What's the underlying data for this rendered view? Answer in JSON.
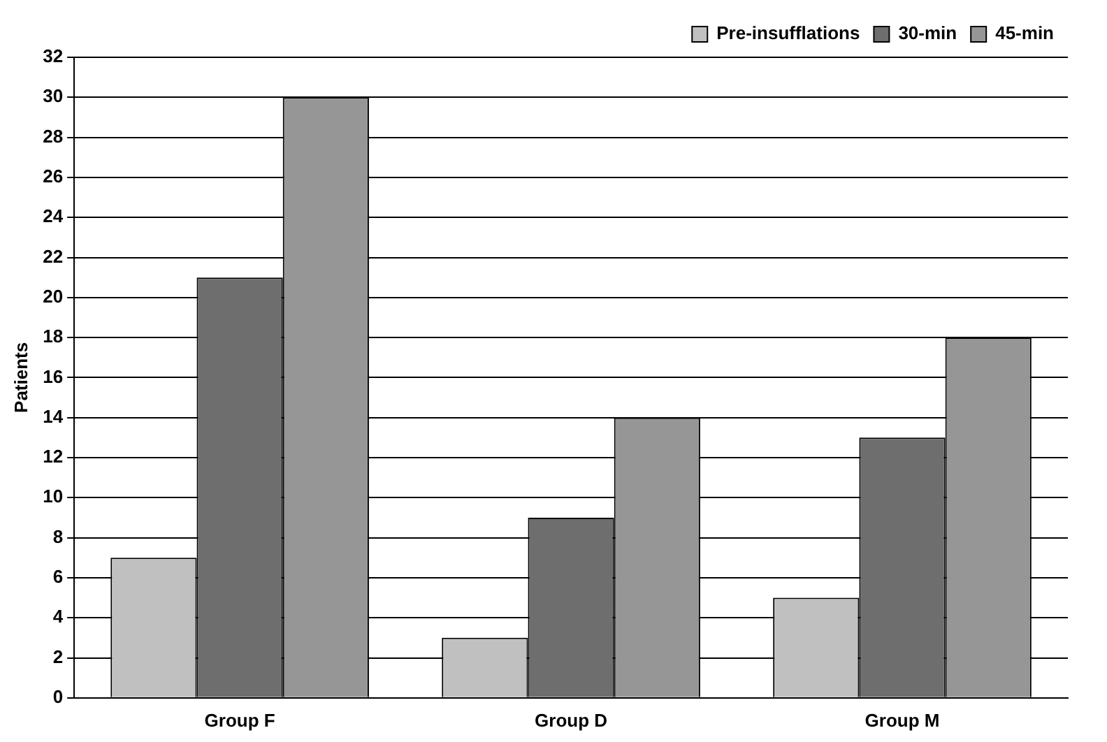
{
  "chart_data": {
    "type": "bar",
    "ylabel": "Patients",
    "categories": [
      "Group F",
      "Group D",
      "Group M"
    ],
    "series": [
      {
        "name": "Pre-insufflations",
        "color": "#c0c0c0",
        "values": [
          7,
          3,
          5
        ]
      },
      {
        "name": "30-min",
        "color": "#6e6e6e",
        "values": [
          21,
          9,
          13
        ]
      },
      {
        "name": "45-min",
        "color": "#969696",
        "values": [
          30,
          14,
          18
        ]
      }
    ],
    "ylim": [
      0,
      32
    ],
    "yticks": [
      0,
      2,
      4,
      6,
      8,
      10,
      12,
      14,
      16,
      18,
      20,
      22,
      24,
      26,
      28,
      30,
      32
    ],
    "grid": "y",
    "legend": "top right"
  }
}
